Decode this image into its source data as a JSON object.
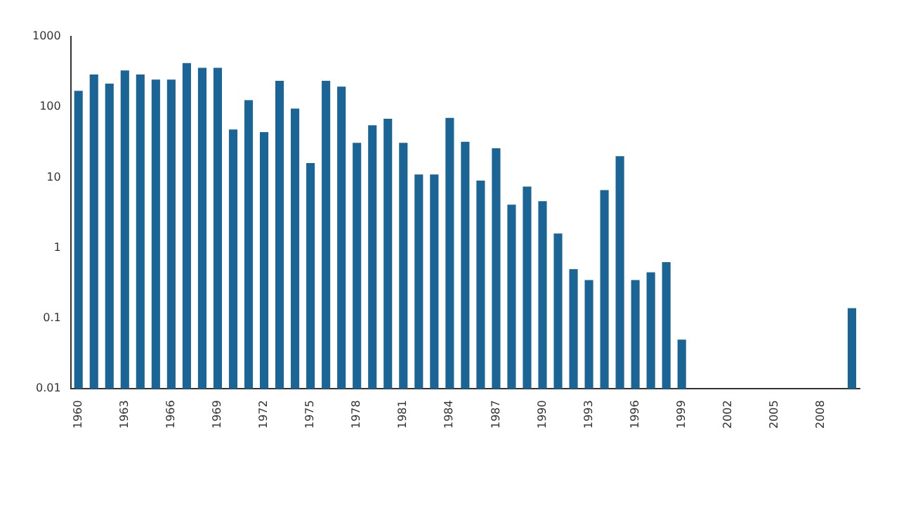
{
  "chart_data": {
    "type": "bar",
    "log": "y",
    "grid": false,
    "legend": false,
    "color": "#1a6496",
    "categories": [
      "1960",
      null,
      null,
      "1963",
      null,
      null,
      "1966",
      null,
      null,
      "1969",
      null,
      null,
      "1972",
      null,
      null,
      "1975",
      null,
      null,
      "1978",
      null,
      null,
      "1981",
      null,
      null,
      "1984",
      null,
      null,
      "1987",
      null,
      null,
      "1990",
      null,
      null,
      "1993",
      null,
      null,
      "1996",
      null,
      null,
      "1999",
      null,
      null,
      "2002",
      null,
      null,
      "2005",
      null,
      null,
      "2008",
      null,
      null
    ],
    "values": [
      170,
      290,
      215,
      330,
      290,
      245,
      245,
      420,
      360,
      360,
      48,
      125,
      44,
      235,
      95,
      16,
      235,
      195,
      31,
      55,
      68,
      31,
      11,
      11,
      70,
      32,
      9,
      26,
      4.1,
      7.4,
      4.6,
      1.6,
      0.5,
      0.35,
      6.6,
      20,
      0.35,
      0.45,
      0.63,
      0.05,
      null,
      null,
      null,
      null,
      null,
      null,
      null,
      null,
      null,
      null,
      0.14
    ],
    "ylim": [
      0.01,
      1000
    ],
    "yticks": [
      0.01,
      0.1,
      1,
      10,
      100,
      1000
    ]
  }
}
